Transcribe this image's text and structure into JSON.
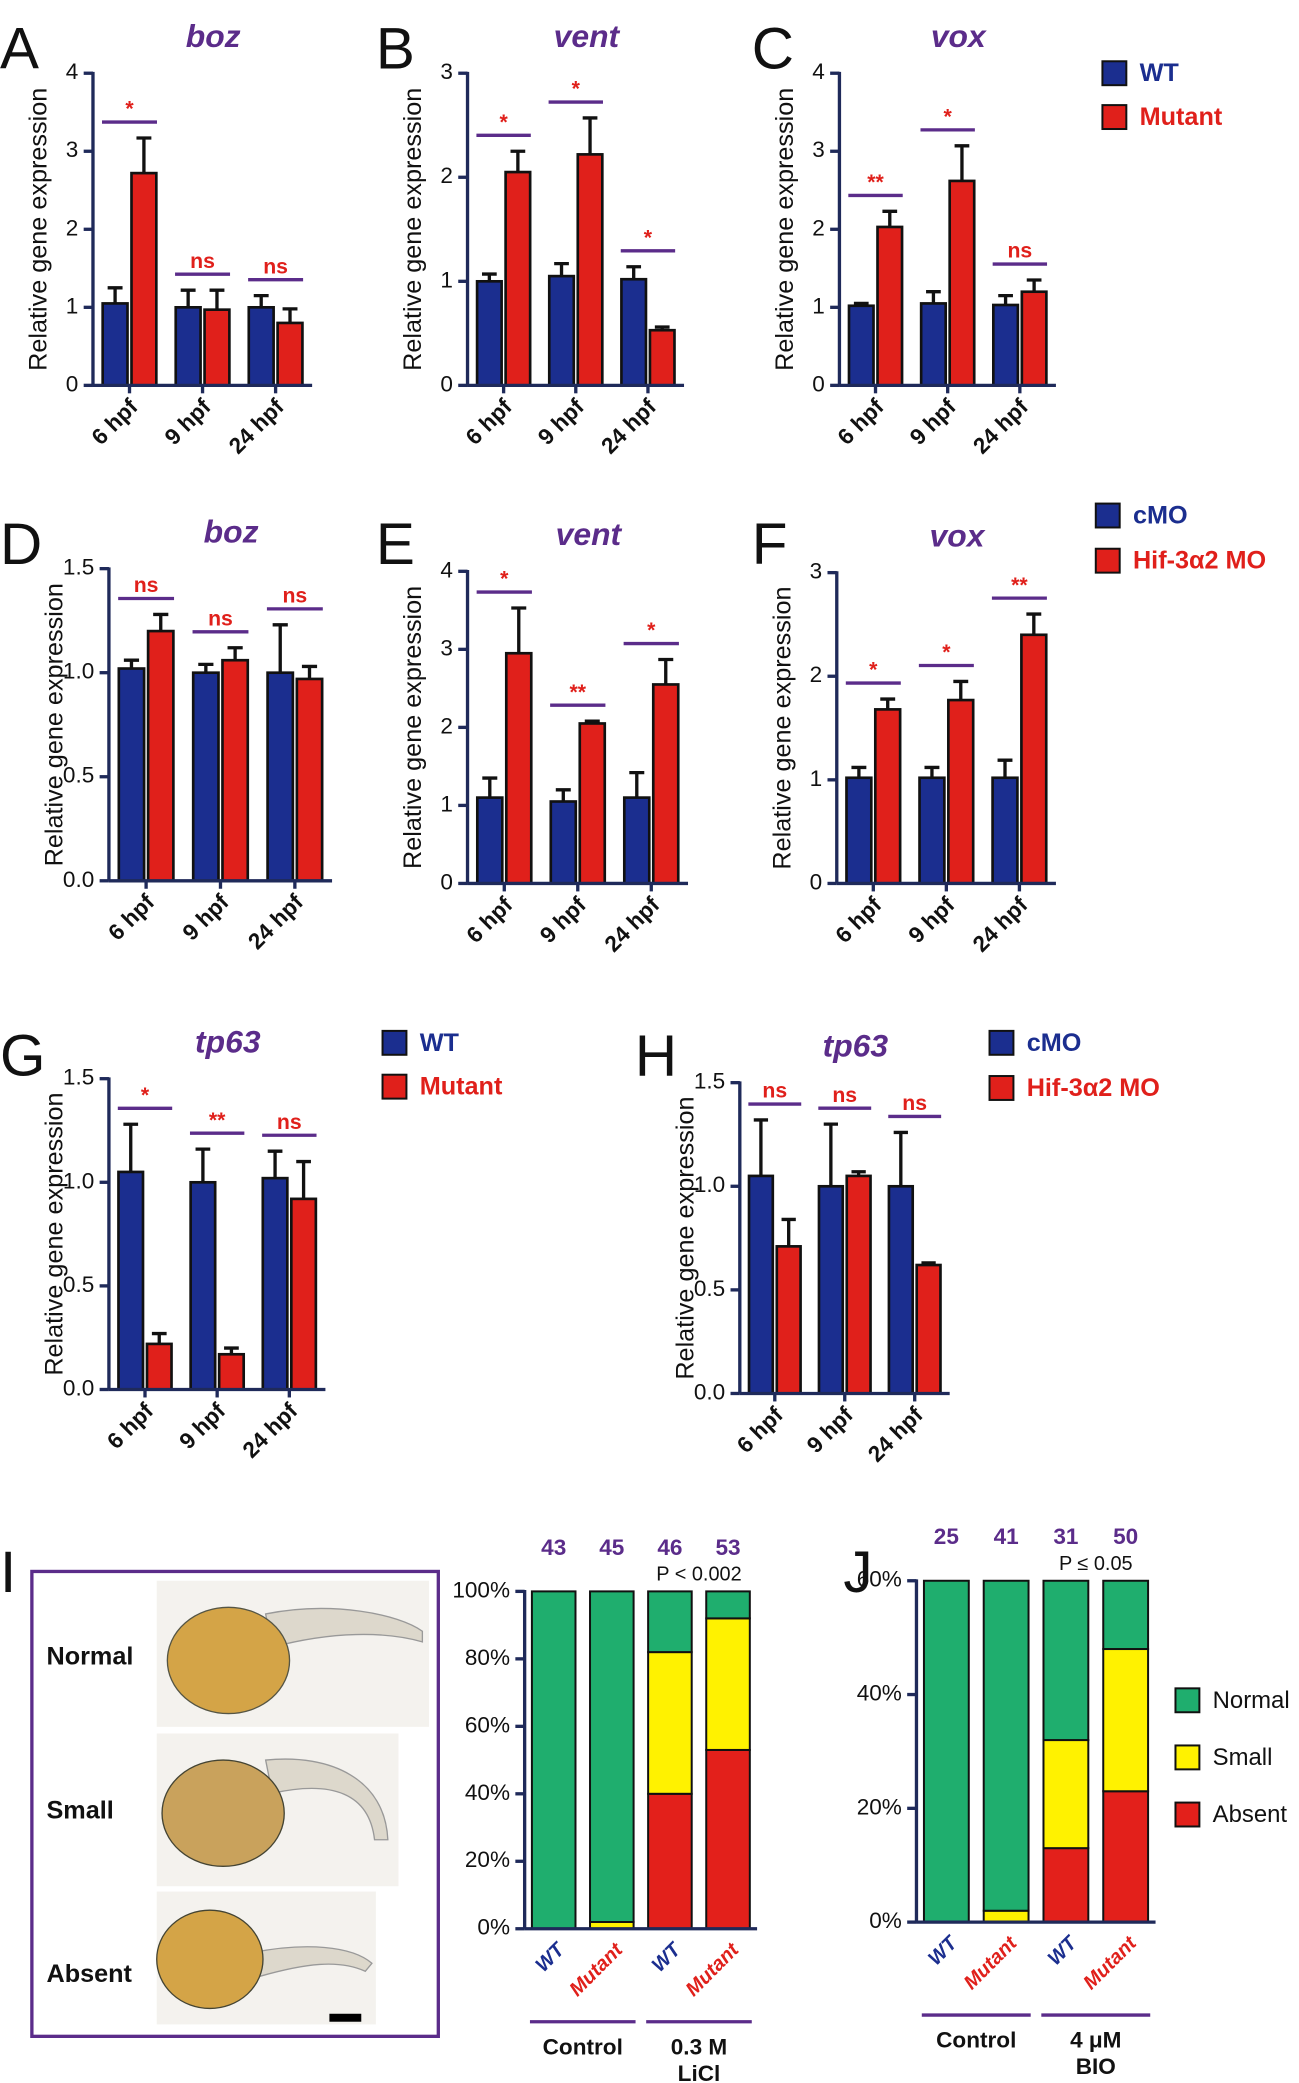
{
  "chart_data": [
    {
      "type": "bar",
      "panel": "A",
      "title": "boz",
      "ylabel": "Relative gene expression",
      "categories": [
        "6 hpf",
        "9 hpf",
        "24 hpf"
      ],
      "ylim": [
        0,
        4
      ],
      "yticks": [
        0,
        1,
        2,
        3,
        4
      ],
      "series": [
        {
          "name": "WT",
          "color": "#1b2e8f",
          "values": [
            1.05,
            1.0,
            1.0
          ],
          "errors": [
            0.2,
            0.22,
            0.15
          ]
        },
        {
          "name": "Mutant",
          "color": "#e0201b",
          "values": [
            2.72,
            0.97,
            0.8
          ],
          "errors": [
            0.45,
            0.25,
            0.18
          ]
        }
      ],
      "annotations": [
        "*",
        "ns",
        "ns"
      ],
      "show_legend": false
    },
    {
      "type": "bar",
      "panel": "B",
      "title": "vent",
      "ylabel": "Relative gene expression",
      "categories": [
        "6 hpf",
        "9 hpf",
        "24 hpf"
      ],
      "ylim": [
        0,
        3
      ],
      "yticks": [
        0,
        1,
        2,
        3
      ],
      "series": [
        {
          "name": "WT",
          "color": "#1b2e8f",
          "values": [
            1.0,
            1.05,
            1.02
          ],
          "errors": [
            0.07,
            0.12,
            0.12
          ]
        },
        {
          "name": "Mutant",
          "color": "#e0201b",
          "values": [
            2.05,
            2.22,
            0.53
          ],
          "errors": [
            0.2,
            0.35,
            0.03
          ]
        }
      ],
      "annotations": [
        "*",
        "*",
        "*"
      ],
      "show_legend": false
    },
    {
      "type": "bar",
      "panel": "C",
      "title": "vox",
      "ylabel": "Relative gene expression",
      "categories": [
        "6 hpf",
        "9 hpf",
        "24 hpf"
      ],
      "ylim": [
        0,
        4
      ],
      "yticks": [
        0,
        1,
        2,
        3,
        4
      ],
      "series": [
        {
          "name": "WT",
          "color": "#1b2e8f",
          "values": [
            1.02,
            1.05,
            1.03
          ],
          "errors": [
            0.03,
            0.15,
            0.12
          ]
        },
        {
          "name": "Mutant",
          "color": "#e0201b",
          "values": [
            2.03,
            2.62,
            1.2
          ],
          "errors": [
            0.2,
            0.45,
            0.15
          ]
        }
      ],
      "annotations": [
        "**",
        "*",
        "ns"
      ],
      "show_legend": true
    },
    {
      "type": "bar",
      "panel": "D",
      "title": "boz",
      "ylabel": "Relative gene expression",
      "categories": [
        "6 hpf",
        "9 hpf",
        "24 hpf"
      ],
      "ylim": [
        0,
        1.5
      ],
      "yticks": [
        {
          "value": 0,
          "label": "0.0"
        },
        {
          "value": 0.5,
          "label": "0.5"
        },
        {
          "value": 1,
          "label": "1.0"
        },
        {
          "value": 1.5,
          "label": "1.5"
        }
      ],
      "series": [
        {
          "name": "cMO",
          "color": "#1b2e8f",
          "values": [
            1.02,
            1.0,
            1.0
          ],
          "errors": [
            0.04,
            0.04,
            0.23
          ]
        },
        {
          "name": "Hif-3α2 MO",
          "color": "#e0201b",
          "values": [
            1.2,
            1.06,
            0.97
          ],
          "errors": [
            0.08,
            0.06,
            0.06
          ]
        }
      ],
      "annotations": [
        "ns",
        "ns",
        "ns"
      ],
      "show_legend": false
    },
    {
      "type": "bar",
      "panel": "E",
      "title": "vent",
      "ylabel": "Relative gene expression",
      "categories": [
        "6 hpf",
        "9 hpf",
        "24 hpf"
      ],
      "ylim": [
        0,
        4
      ],
      "yticks": [
        0,
        1,
        2,
        3,
        4
      ],
      "series": [
        {
          "name": "cMO",
          "color": "#1b2e8f",
          "values": [
            1.1,
            1.05,
            1.1
          ],
          "errors": [
            0.25,
            0.15,
            0.32
          ]
        },
        {
          "name": "Hif-3α2 MO",
          "color": "#e0201b",
          "values": [
            2.95,
            2.05,
            2.55
          ],
          "errors": [
            0.58,
            0.03,
            0.32
          ]
        }
      ],
      "annotations": [
        "*",
        "**",
        "*"
      ],
      "show_legend": false
    },
    {
      "type": "bar",
      "panel": "F",
      "title": "vox",
      "ylabel": "Relative gene expression",
      "categories": [
        "6 hpf",
        "9 hpf",
        "24 hpf"
      ],
      "ylim": [
        0,
        3
      ],
      "yticks": [
        0,
        1,
        2,
        3
      ],
      "series": [
        {
          "name": "cMO",
          "color": "#1b2e8f",
          "values": [
            1.02,
            1.02,
            1.02
          ],
          "errors": [
            0.1,
            0.1,
            0.17
          ]
        },
        {
          "name": "Hif-3α2 MO",
          "color": "#e0201b",
          "values": [
            1.68,
            1.77,
            2.4
          ],
          "errors": [
            0.1,
            0.18,
            0.2
          ]
        }
      ],
      "annotations": [
        "*",
        "*",
        "**"
      ],
      "show_legend": true
    },
    {
      "type": "bar",
      "panel": "G",
      "title": "tp63",
      "ylabel": "Relative gene expression",
      "categories": [
        "6 hpf",
        "9 hpf",
        "24 hpf"
      ],
      "ylim": [
        0,
        1.5
      ],
      "yticks": [
        {
          "value": 0,
          "label": "0.0"
        },
        {
          "value": 0.5,
          "label": "0.5"
        },
        {
          "value": 1,
          "label": "1.0"
        },
        {
          "value": 1.5,
          "label": "1.5"
        }
      ],
      "series": [
        {
          "name": "WT",
          "color": "#1b2e8f",
          "values": [
            1.05,
            1.0,
            1.02
          ],
          "errors": [
            0.23,
            0.16,
            0.13
          ]
        },
        {
          "name": "Mutant",
          "color": "#e0201b",
          "values": [
            0.22,
            0.17,
            0.92
          ],
          "errors": [
            0.05,
            0.03,
            0.18
          ]
        }
      ],
      "annotations": [
        "*",
        "**",
        "ns"
      ],
      "show_legend": true
    },
    {
      "type": "bar",
      "panel": "H",
      "title": "tp63",
      "ylabel": "Relative gene expression",
      "categories": [
        "6 hpf",
        "9 hpf",
        "24 hpf"
      ],
      "ylim": [
        0,
        1.5
      ],
      "yticks": [
        {
          "value": 0,
          "label": "0.0"
        },
        {
          "value": 0.5,
          "label": "0.5"
        },
        {
          "value": 1,
          "label": "1.0"
        },
        {
          "value": 1.5,
          "label": "1.5"
        }
      ],
      "series": [
        {
          "name": "cMO",
          "color": "#1b2e8f",
          "values": [
            1.05,
            1.0,
            1.0
          ],
          "errors": [
            0.27,
            0.3,
            0.26
          ]
        },
        {
          "name": "Hif-3α2 MO",
          "color": "#e0201b",
          "values": [
            0.71,
            1.05,
            0.62
          ],
          "errors": [
            0.13,
            0.02,
            0.01
          ]
        }
      ],
      "annotations": [
        "ns",
        "ns",
        "ns"
      ],
      "show_legend": true
    },
    {
      "type": "stacked",
      "panel": "I",
      "categories": [
        "WT",
        "Mutant",
        "WT",
        "Mutant"
      ],
      "category_colors": [
        "#1b2e8f",
        "#e0201b",
        "#1b2e8f",
        "#e0201b"
      ],
      "counts": [
        43,
        45,
        46,
        53
      ],
      "p_label": "P < 0.002",
      "groups": [
        [
          "Control"
        ],
        [
          "0.3 M",
          "LiCl"
        ]
      ],
      "ylim": [
        0,
        100
      ],
      "yticks": [
        {
          "value": 0,
          "label": "0%"
        },
        {
          "value": 20,
          "label": "20%"
        },
        {
          "value": 40,
          "label": "40%"
        },
        {
          "value": 60,
          "label": "60%"
        },
        {
          "value": 80,
          "label": "80%"
        },
        {
          "value": 100,
          "label": "100%"
        }
      ],
      "series": [
        {
          "name": "Absent",
          "color": "#e3201b",
          "values": [
            0,
            0,
            40,
            53
          ]
        },
        {
          "name": "Small",
          "color": "#fff200",
          "values": [
            0,
            2,
            42,
            39
          ]
        },
        {
          "name": "Normal",
          "color": "#1fae6e",
          "values": [
            100,
            98,
            18,
            8
          ]
        }
      ],
      "show_legend": false,
      "image_labels": [
        "Normal",
        "Small",
        "Absent"
      ]
    },
    {
      "type": "stacked",
      "panel": "J",
      "categories": [
        "WT",
        "Mutant",
        "WT",
        "Mutant"
      ],
      "category_colors": [
        "#1b2e8f",
        "#e0201b",
        "#1b2e8f",
        "#e0201b"
      ],
      "counts": [
        25,
        41,
        31,
        50
      ],
      "p_label": "P ≤ 0.05",
      "groups": [
        [
          "Control"
        ],
        [
          "4 μM",
          "BIO"
        ]
      ],
      "ylim": [
        0,
        60
      ],
      "yticks": [
        {
          "value": 0,
          "label": "0%"
        },
        {
          "value": 20,
          "label": "20%"
        },
        {
          "value": 40,
          "label": "40%"
        },
        {
          "value": 60,
          "label": "60%"
        }
      ],
      "series": [
        {
          "name": "Absent",
          "color": "#e3201b",
          "values": [
            0,
            0,
            13,
            23
          ]
        },
        {
          "name": "Small",
          "color": "#fff200",
          "values": [
            0,
            2,
            19,
            25
          ]
        },
        {
          "name": "Normal",
          "color": "#1fae6e",
          "values": [
            60,
            58,
            28,
            12
          ]
        }
      ],
      "show_legend": true
    }
  ]
}
